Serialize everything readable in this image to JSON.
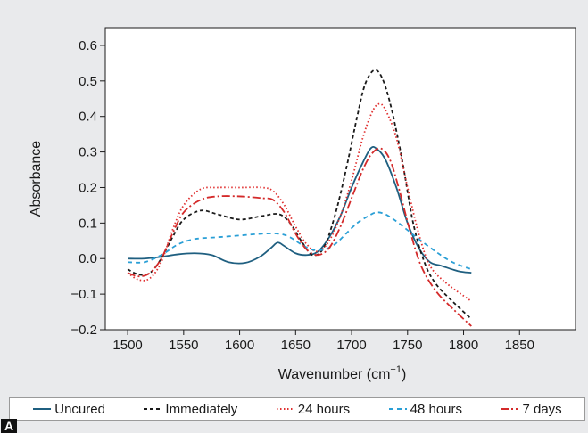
{
  "panel_label": "A",
  "chart_data": {
    "type": "line",
    "title": "",
    "xlabel": "Wavenumber (cm",
    "xlabel_sup": "−1",
    "xlabel_end": ")",
    "ylabel": "Absorbance",
    "xlim": [
      1480,
      1900
    ],
    "ylim": [
      -0.2,
      0.65
    ],
    "xticks": [
      1500,
      1550,
      1600,
      1650,
      1700,
      1750,
      1800,
      1850
    ],
    "xtick_labels": [
      "1500",
      "1550",
      "1600",
      "1650",
      "1700",
      "1750",
      "1800",
      "1850"
    ],
    "yticks": [
      -0.2,
      -0.1,
      0.0,
      0.1,
      0.2,
      0.3,
      0.4,
      0.5,
      0.6
    ],
    "ytick_labels": [
      "−0.2",
      "−0.1",
      "0.0",
      "0.1",
      "0.2",
      "0.3",
      "0.4",
      "0.5",
      "0.6"
    ],
    "grid": false,
    "legend_position": "bottom",
    "series": [
      {
        "name": "Uncured",
        "color": "#1f5f80",
        "dash": "solid",
        "points": [
          [
            1500,
            0.0
          ],
          [
            1515,
            0.0
          ],
          [
            1530,
            0.005
          ],
          [
            1545,
            0.012
          ],
          [
            1560,
            0.015
          ],
          [
            1575,
            0.01
          ],
          [
            1590,
            -0.01
          ],
          [
            1605,
            -0.012
          ],
          [
            1618,
            0.005
          ],
          [
            1628,
            0.03
          ],
          [
            1634,
            0.045
          ],
          [
            1640,
            0.035
          ],
          [
            1650,
            0.015
          ],
          [
            1660,
            0.01
          ],
          [
            1670,
            0.02
          ],
          [
            1680,
            0.06
          ],
          [
            1690,
            0.12
          ],
          [
            1700,
            0.2
          ],
          [
            1710,
            0.27
          ],
          [
            1717,
            0.31
          ],
          [
            1722,
            0.31
          ],
          [
            1730,
            0.28
          ],
          [
            1740,
            0.2
          ],
          [
            1750,
            0.1
          ],
          [
            1760,
            0.03
          ],
          [
            1770,
            -0.01
          ],
          [
            1780,
            -0.02
          ],
          [
            1795,
            -0.035
          ],
          [
            1807,
            -0.04
          ]
        ]
      },
      {
        "name": "Immediately",
        "color": "#1a1a1a",
        "dash": "4,3",
        "points": [
          [
            1500,
            -0.03
          ],
          [
            1510,
            -0.045
          ],
          [
            1520,
            -0.04
          ],
          [
            1530,
            0.0
          ],
          [
            1540,
            0.06
          ],
          [
            1550,
            0.11
          ],
          [
            1565,
            0.135
          ],
          [
            1580,
            0.125
          ],
          [
            1600,
            0.11
          ],
          [
            1620,
            0.12
          ],
          [
            1635,
            0.125
          ],
          [
            1645,
            0.1
          ],
          [
            1655,
            0.05
          ],
          [
            1665,
            0.01
          ],
          [
            1675,
            0.03
          ],
          [
            1685,
            0.12
          ],
          [
            1695,
            0.25
          ],
          [
            1705,
            0.4
          ],
          [
            1712,
            0.49
          ],
          [
            1720,
            0.53
          ],
          [
            1727,
            0.51
          ],
          [
            1735,
            0.43
          ],
          [
            1745,
            0.28
          ],
          [
            1755,
            0.1
          ],
          [
            1765,
            -0.01
          ],
          [
            1775,
            -0.07
          ],
          [
            1790,
            -0.12
          ],
          [
            1807,
            -0.17
          ]
        ]
      },
      {
        "name": "24 hours",
        "color": "#e03030",
        "dash": "1.5,2.5",
        "points": [
          [
            1500,
            -0.04
          ],
          [
            1510,
            -0.06
          ],
          [
            1520,
            -0.055
          ],
          [
            1530,
            -0.01
          ],
          [
            1540,
            0.08
          ],
          [
            1550,
            0.15
          ],
          [
            1565,
            0.195
          ],
          [
            1580,
            0.2
          ],
          [
            1600,
            0.2
          ],
          [
            1620,
            0.2
          ],
          [
            1630,
            0.19
          ],
          [
            1640,
            0.15
          ],
          [
            1650,
            0.09
          ],
          [
            1660,
            0.04
          ],
          [
            1670,
            0.02
          ],
          [
            1680,
            0.05
          ],
          [
            1690,
            0.12
          ],
          [
            1700,
            0.22
          ],
          [
            1710,
            0.34
          ],
          [
            1718,
            0.41
          ],
          [
            1724,
            0.435
          ],
          [
            1730,
            0.42
          ],
          [
            1740,
            0.34
          ],
          [
            1750,
            0.2
          ],
          [
            1760,
            0.07
          ],
          [
            1770,
            -0.02
          ],
          [
            1785,
            -0.07
          ],
          [
            1807,
            -0.12
          ]
        ]
      },
      {
        "name": "48 hours",
        "color": "#2a9fd6",
        "dash": "5,4",
        "points": [
          [
            1500,
            -0.01
          ],
          [
            1515,
            -0.01
          ],
          [
            1530,
            0.01
          ],
          [
            1545,
            0.04
          ],
          [
            1560,
            0.055
          ],
          [
            1580,
            0.06
          ],
          [
            1600,
            0.065
          ],
          [
            1620,
            0.07
          ],
          [
            1635,
            0.07
          ],
          [
            1645,
            0.06
          ],
          [
            1655,
            0.04
          ],
          [
            1665,
            0.025
          ],
          [
            1675,
            0.025
          ],
          [
            1685,
            0.04
          ],
          [
            1695,
            0.07
          ],
          [
            1705,
            0.1
          ],
          [
            1715,
            0.12
          ],
          [
            1722,
            0.13
          ],
          [
            1730,
            0.125
          ],
          [
            1740,
            0.105
          ],
          [
            1750,
            0.08
          ],
          [
            1760,
            0.055
          ],
          [
            1775,
            0.02
          ],
          [
            1790,
            -0.01
          ],
          [
            1807,
            -0.03
          ]
        ]
      },
      {
        "name": "7 days",
        "color": "#d42a2a",
        "dash": "9,3,2,3",
        "points": [
          [
            1500,
            -0.04
          ],
          [
            1510,
            -0.05
          ],
          [
            1520,
            -0.04
          ],
          [
            1530,
            0.0
          ],
          [
            1540,
            0.07
          ],
          [
            1550,
            0.13
          ],
          [
            1565,
            0.165
          ],
          [
            1580,
            0.175
          ],
          [
            1600,
            0.175
          ],
          [
            1620,
            0.17
          ],
          [
            1630,
            0.165
          ],
          [
            1640,
            0.13
          ],
          [
            1650,
            0.07
          ],
          [
            1660,
            0.025
          ],
          [
            1670,
            0.01
          ],
          [
            1680,
            0.03
          ],
          [
            1690,
            0.09
          ],
          [
            1700,
            0.17
          ],
          [
            1710,
            0.25
          ],
          [
            1718,
            0.295
          ],
          [
            1726,
            0.31
          ],
          [
            1734,
            0.28
          ],
          [
            1742,
            0.2
          ],
          [
            1752,
            0.08
          ],
          [
            1762,
            -0.02
          ],
          [
            1775,
            -0.09
          ],
          [
            1790,
            -0.14
          ],
          [
            1807,
            -0.19
          ]
        ]
      }
    ]
  }
}
